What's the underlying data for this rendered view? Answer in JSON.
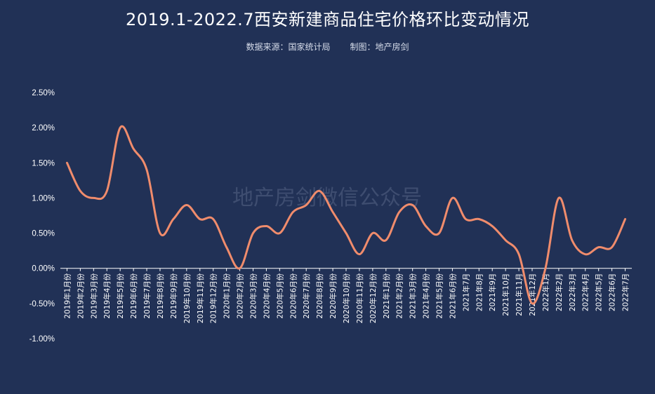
{
  "header": {
    "title": "2019.1-2022.7西安新建商品住宅价格环比变动情况",
    "source": "数据来源：国家统计局",
    "author": "制图：地产房剑"
  },
  "watermark": "地产房剑微信公众号",
  "colors": {
    "background": "#213156",
    "line": "#f08c6c",
    "text": "#ffffff",
    "axis": "#ffffff",
    "watermark": "#3e4d70"
  },
  "chart_data": {
    "type": "line",
    "title": "2019.1-2022.7西安新建商品住宅价格环比变动情况",
    "xlabel": "",
    "ylabel": "",
    "ylim": [
      -0.01,
      0.025
    ],
    "yticks": [
      -0.01,
      -0.005,
      0,
      0.005,
      0.01,
      0.015,
      0.02,
      0.025
    ],
    "ytick_labels": [
      "-1.00%",
      "-0.50%",
      "0.00%",
      "0.50%",
      "1.00%",
      "1.50%",
      "2.00%",
      "2.50%"
    ],
    "grid": false,
    "legend": "none",
    "categories": [
      "2019年1月份",
      "2019年2月份",
      "2019年3月份",
      "2019年4月份",
      "2019年5月份",
      "2019年6月份",
      "2019年7月份",
      "2019年8月份",
      "2019年9月份",
      "2019年10月份",
      "2019年11月份",
      "2019年12月份",
      "2020年1月份",
      "2020年2月份",
      "2020年3月份",
      "2020年4月份",
      "2020年5月份",
      "2020年6月份",
      "2020年7月份",
      "2020年8月份",
      "2020年9月份",
      "2020年10月份",
      "2020年11月份",
      "2020年12月份",
      "2021年1月份",
      "2021年2月份",
      "2021年3月份",
      "2021年4月份",
      "2021年5月份",
      "2021年6月份",
      "2021年7月",
      "2021年8月",
      "2021年9月",
      "2021年10月",
      "2021年11月",
      "2021年12月",
      "2022年1月",
      "2022年2月",
      "2022年3月",
      "2022年4月",
      "2022年5月",
      "2022年6月",
      "2022年7月"
    ],
    "series": [
      {
        "values": [
          0.015,
          0.011,
          0.01,
          0.011,
          0.02,
          0.017,
          0.014,
          0.005,
          0.007,
          0.009,
          0.007,
          0.007,
          0.003,
          0.0,
          0.005,
          0.006,
          0.005,
          0.008,
          0.009,
          0.011,
          0.008,
          0.005,
          0.002,
          0.005,
          0.004,
          0.008,
          0.009,
          0.006,
          0.005,
          0.01,
          0.007,
          0.007,
          0.006,
          0.004,
          0.002,
          -0.005,
          0.0,
          0.01,
          0.004,
          0.002,
          0.003,
          0.003,
          0.007
        ]
      }
    ]
  }
}
